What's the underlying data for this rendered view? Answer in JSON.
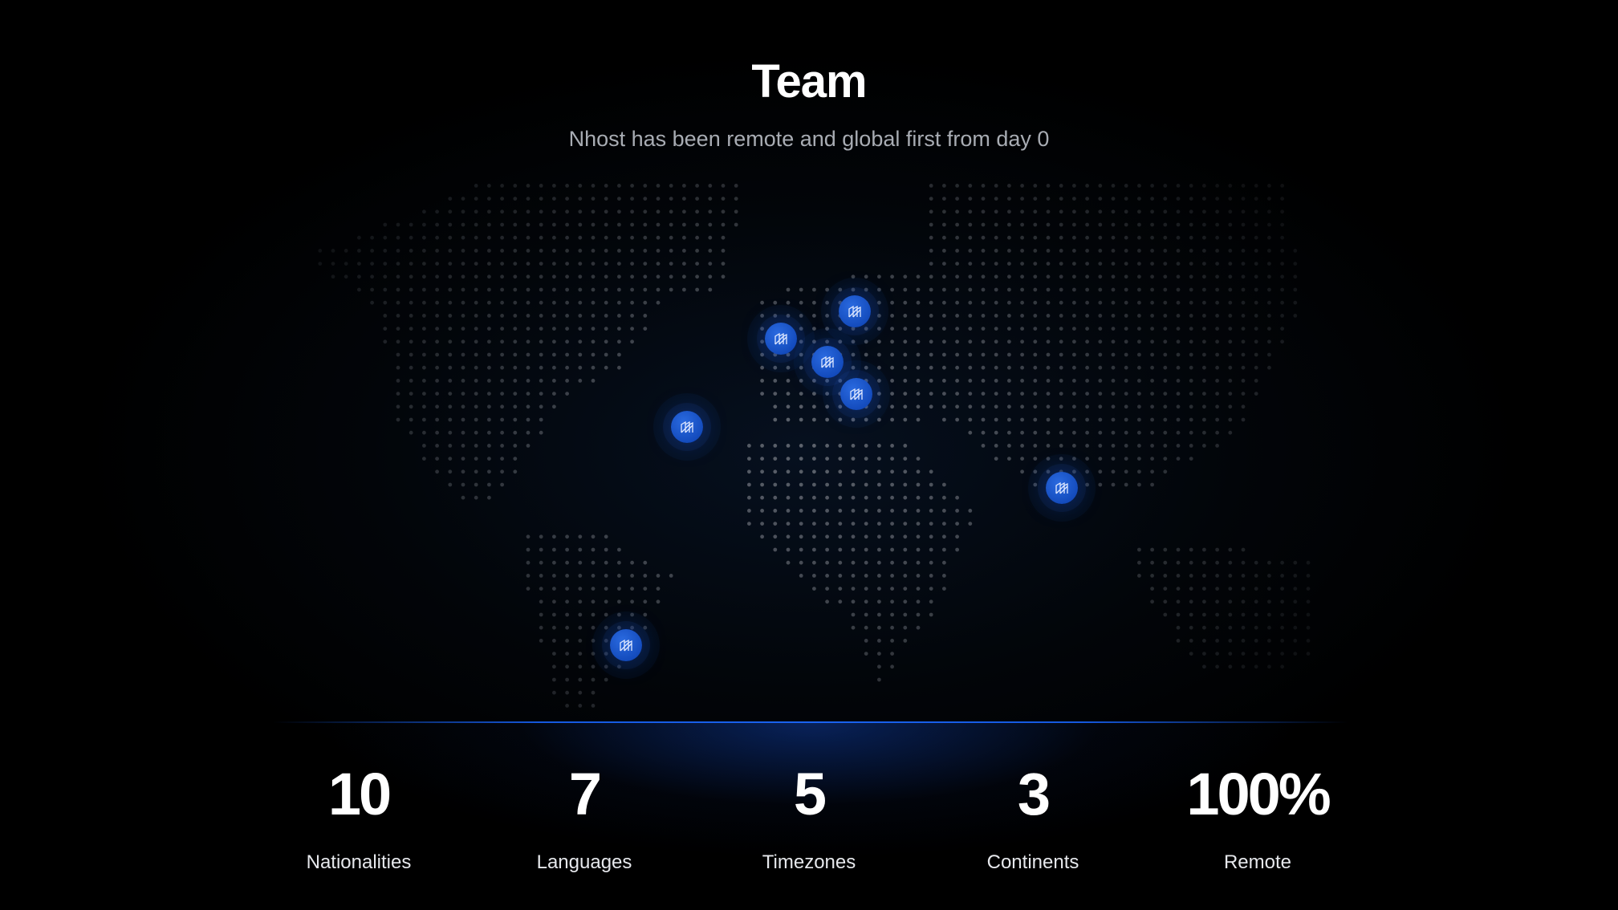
{
  "header": {
    "title": "Team",
    "subtitle": "Nhost has been remote and global first from day 0"
  },
  "colors": {
    "accent": "#1a63f0",
    "marker": "#1f55c8",
    "background": "#000000"
  },
  "map": {
    "marker_icon": "nhost-logo-icon",
    "marker_count": 7
  },
  "stats": [
    {
      "value": "10",
      "label": "Nationalities"
    },
    {
      "value": "7",
      "label": "Languages"
    },
    {
      "value": "5",
      "label": "Timezones"
    },
    {
      "value": "3",
      "label": "Continents"
    },
    {
      "value": "100%",
      "label": "Remote"
    }
  ]
}
